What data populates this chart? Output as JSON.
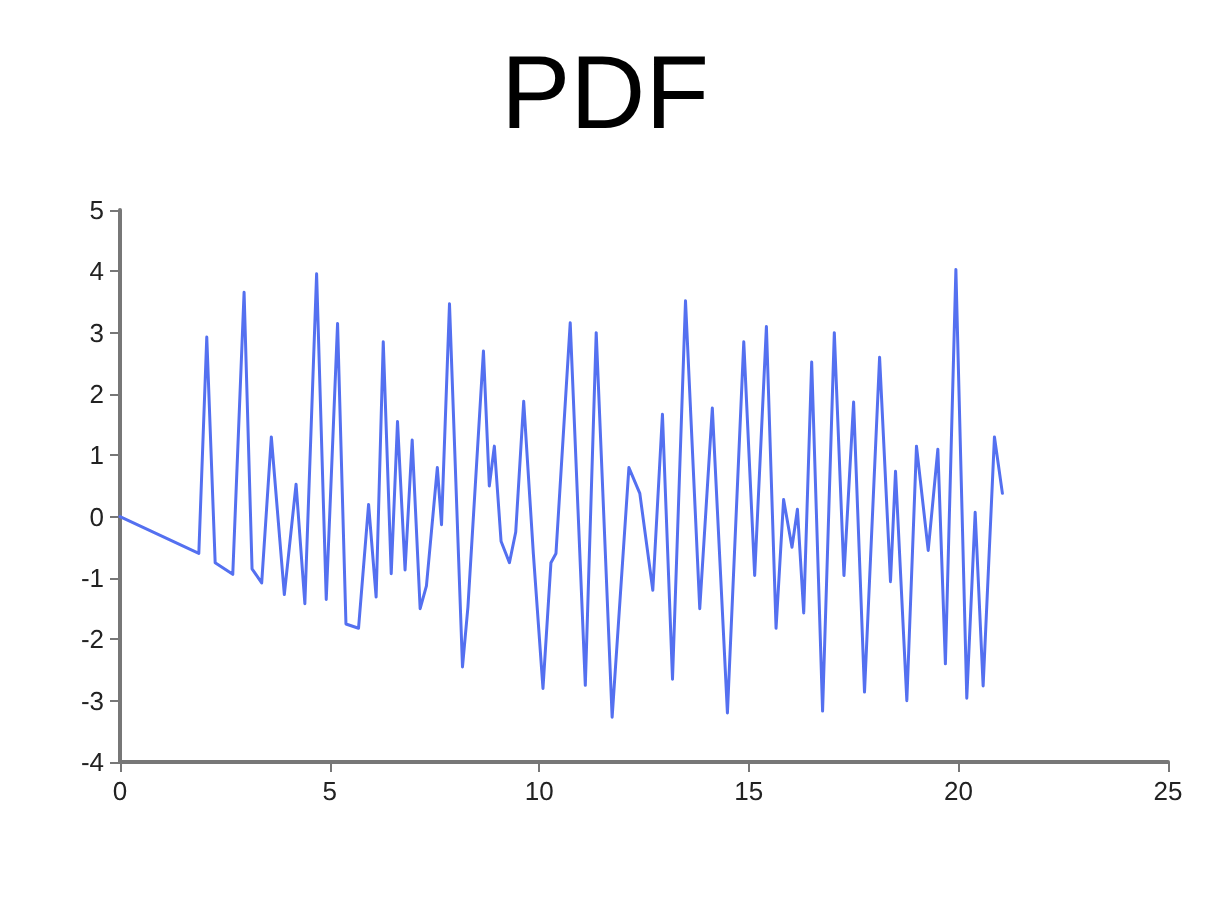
{
  "chart_data": {
    "type": "line",
    "title": "PDF",
    "grid": false,
    "marker": "none",
    "line_style": "solid",
    "xlim": [
      0,
      25
    ],
    "xticks": [
      0,
      5,
      10,
      15,
      20,
      25
    ],
    "ylim": [
      -4,
      5
    ],
    "yticks": [
      -4,
      -3,
      -2,
      -1,
      0,
      1,
      2,
      3,
      4,
      5
    ],
    "series": [
      {
        "color": "#5470f0",
        "x": [
          0,
          1.88,
          2.07,
          2.27,
          2.69,
          2.96,
          3.15,
          3.38,
          3.61,
          3.92,
          4.2,
          4.41,
          4.69,
          4.92,
          5.19,
          5.39,
          5.69,
          5.93,
          6.11,
          6.28,
          6.47,
          6.62,
          6.8,
          6.97,
          7.16,
          7.31,
          7.57,
          7.67,
          7.86,
          8.17,
          8.3,
          8.67,
          8.81,
          8.93,
          9.09,
          9.29,
          9.44,
          9.63,
          9.86,
          10.09,
          10.28,
          10.4,
          10.74,
          11.1,
          11.36,
          11.74,
          12.14,
          12.4,
          12.71,
          12.94,
          13.18,
          13.49,
          13.83,
          14.13,
          14.49,
          14.88,
          15.14,
          15.42,
          15.65,
          15.83,
          16.03,
          16.16,
          16.31,
          16.5,
          16.76,
          17.04,
          17.27,
          17.5,
          17.76,
          18.12,
          18.38,
          18.5,
          18.77,
          19.0,
          19.28,
          19.51,
          19.69,
          19.94,
          20.2,
          20.4,
          20.59,
          20.86,
          21.05
        ],
        "values": [
          0,
          -0.6,
          2.93,
          -0.75,
          -0.94,
          3.66,
          -0.85,
          -1.08,
          1.3,
          -1.27,
          0.53,
          -1.42,
          3.96,
          -1.35,
          3.15,
          -1.75,
          -1.82,
          0.2,
          -1.31,
          2.85,
          -0.93,
          1.55,
          -0.87,
          1.25,
          -1.5,
          -1.13,
          0.8,
          -0.13,
          3.47,
          -2.45,
          -1.47,
          2.7,
          0.5,
          1.15,
          -0.4,
          -0.75,
          -0.25,
          1.88,
          -0.6,
          -2.8,
          -0.75,
          -0.6,
          3.16,
          -2.75,
          3.0,
          -3.27,
          0.8,
          0.38,
          -1.2,
          1.67,
          -2.65,
          3.52,
          -1.5,
          1.77,
          -3.2,
          2.85,
          -0.96,
          3.1,
          -1.82,
          0.28,
          -0.5,
          0.12,
          -1.57,
          2.52,
          -3.17,
          3.0,
          -0.96,
          1.87,
          -2.86,
          2.6,
          -1.06,
          0.74,
          -3.0,
          1.15,
          -0.55,
          1.1,
          -2.4,
          4.03,
          -2.96,
          0.07,
          -2.76,
          1.3,
          0.38
        ]
      }
    ]
  }
}
